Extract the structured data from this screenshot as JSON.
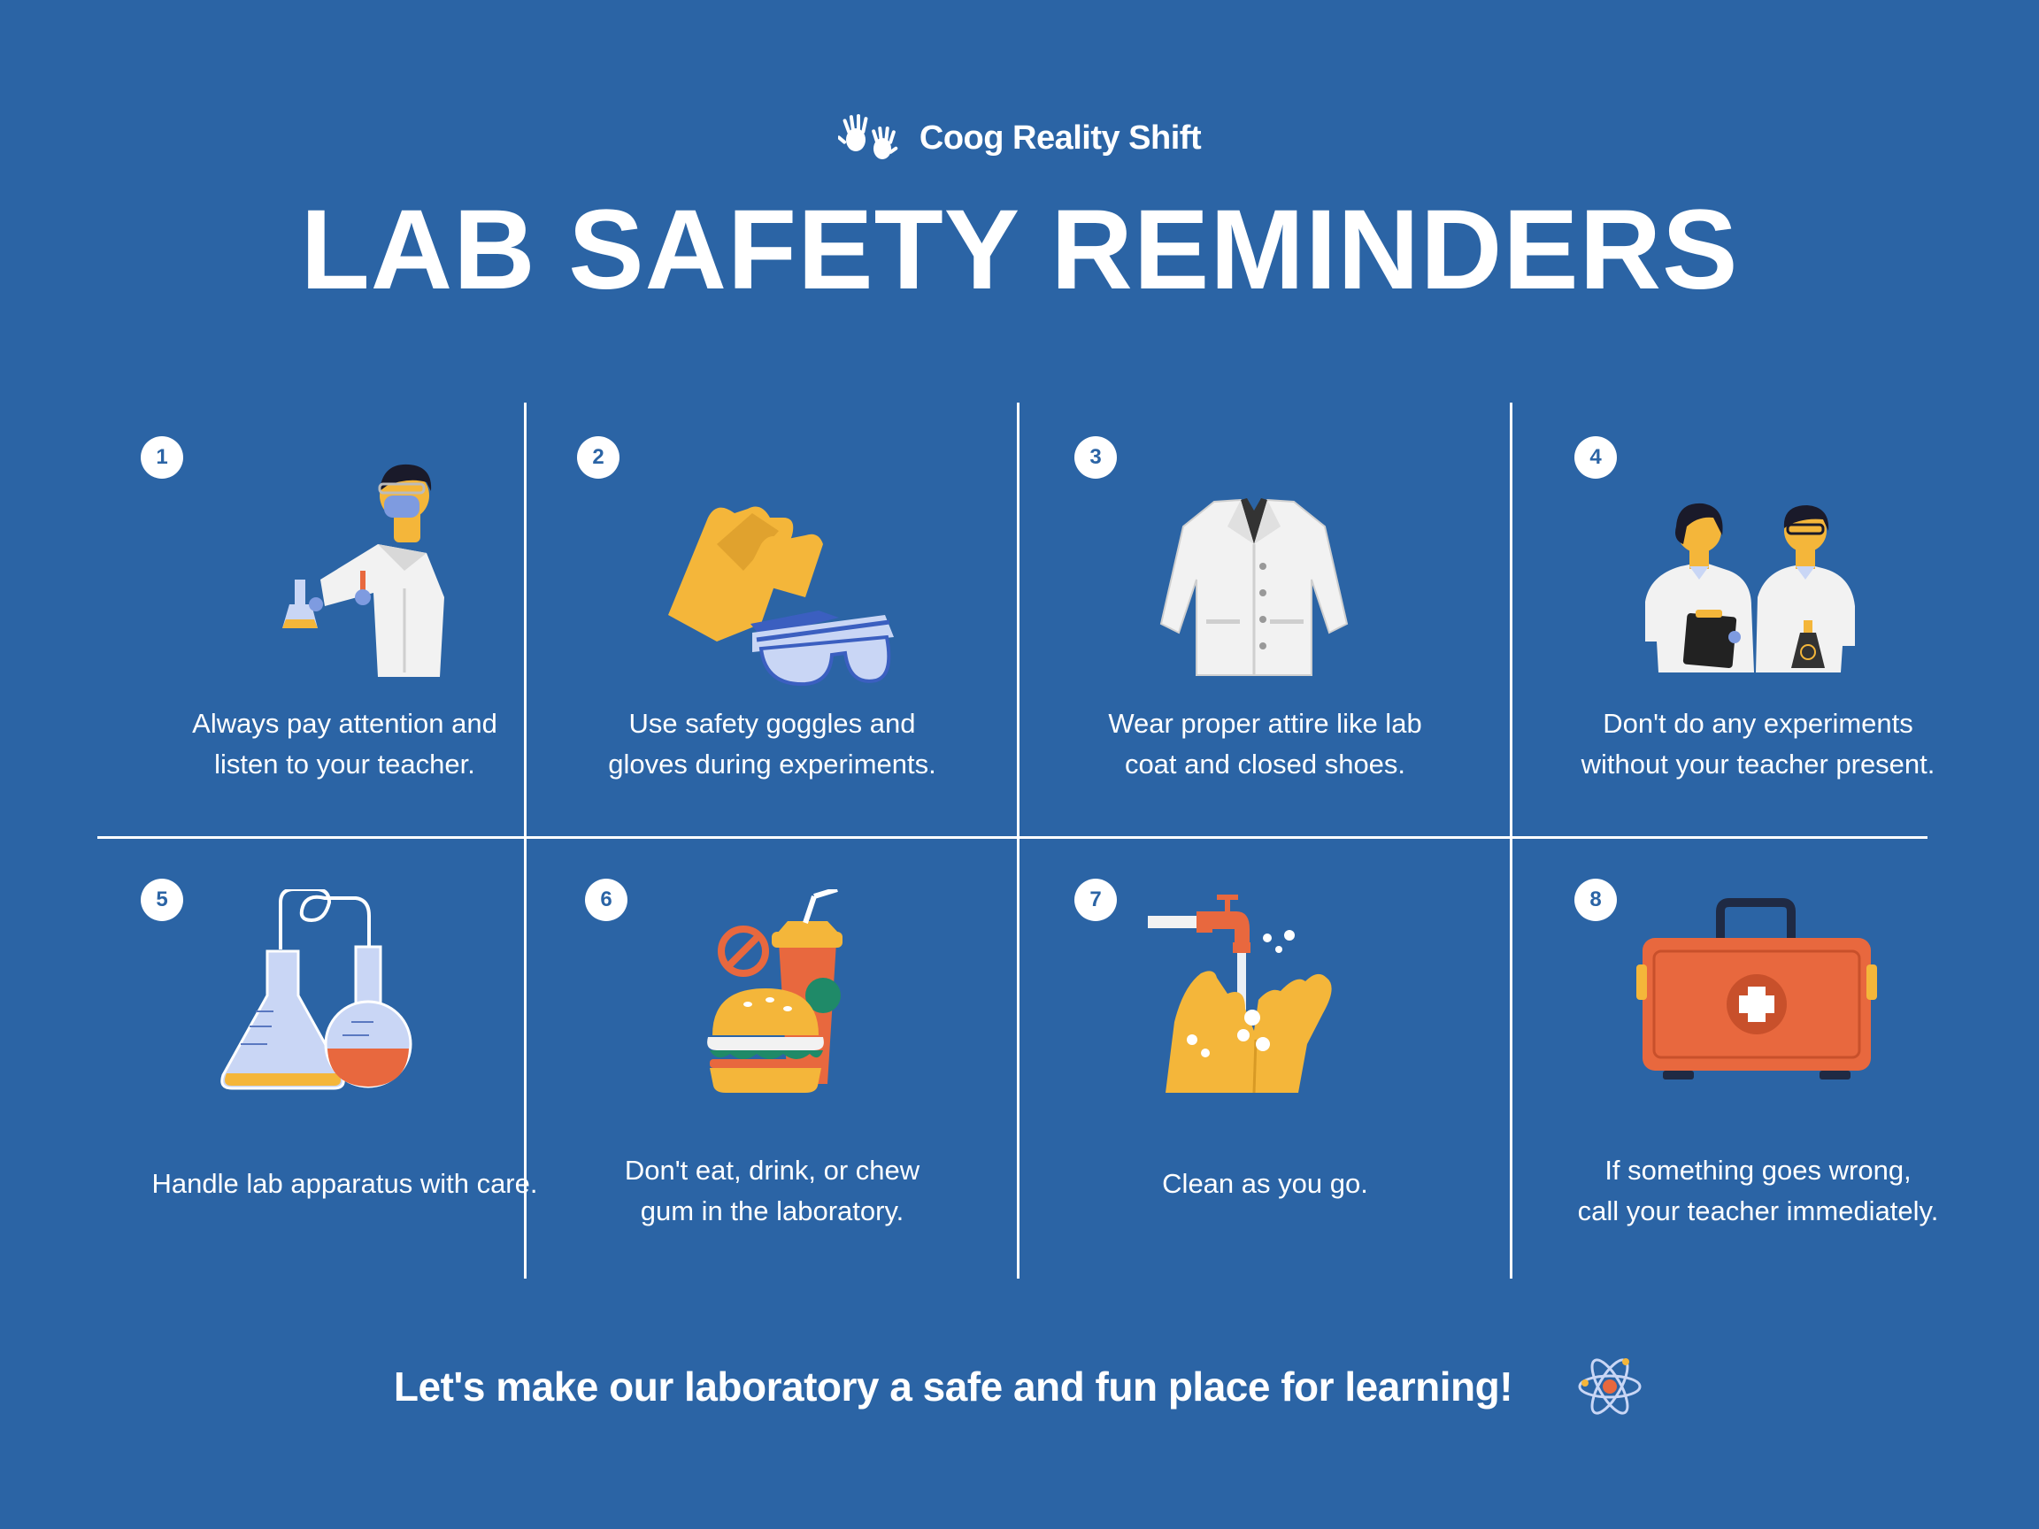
{
  "brand": {
    "name": "Coog Reality Shift",
    "icon": "handprints-icon"
  },
  "title": "LAB SAFETY REMINDERS",
  "reminders": [
    {
      "number": "1",
      "icon": "scientist-icon",
      "text_line1": "Always pay attention and",
      "text_line2": "listen to your teacher."
    },
    {
      "number": "2",
      "icon": "gloves-goggles-icon",
      "text_line1": "Use safety goggles and",
      "text_line2": "gloves during experiments."
    },
    {
      "number": "3",
      "icon": "lab-coat-icon",
      "text_line1": "Wear proper attire like lab",
      "text_line2": "coat and closed shoes."
    },
    {
      "number": "4",
      "icon": "scientists-pair-icon",
      "text_line1": "Don't do any experiments",
      "text_line2": "without your teacher present."
    },
    {
      "number": "5",
      "icon": "flasks-icon",
      "text_line1": "Handle lab apparatus with care.",
      "text_line2": ""
    },
    {
      "number": "6",
      "icon": "no-food-drink-icon",
      "text_line1": "Don't eat, drink, or chew",
      "text_line2": "gum in the laboratory."
    },
    {
      "number": "7",
      "icon": "hand-washing-icon",
      "text_line1": "Clean as you go.",
      "text_line2": ""
    },
    {
      "number": "8",
      "icon": "first-aid-kit-icon",
      "text_line1": "If something goes wrong,",
      "text_line2": "call your teacher immediately."
    }
  ],
  "footer": {
    "text": "Let's make our laboratory a safe and fun place for learning!",
    "icon": "atom-icon"
  },
  "colors": {
    "background": "#2B64A5",
    "yellow": "#F4B63A",
    "orange": "#E8683E",
    "light_blue": "#C9D6F5",
    "coat": "#F2F2F2"
  }
}
